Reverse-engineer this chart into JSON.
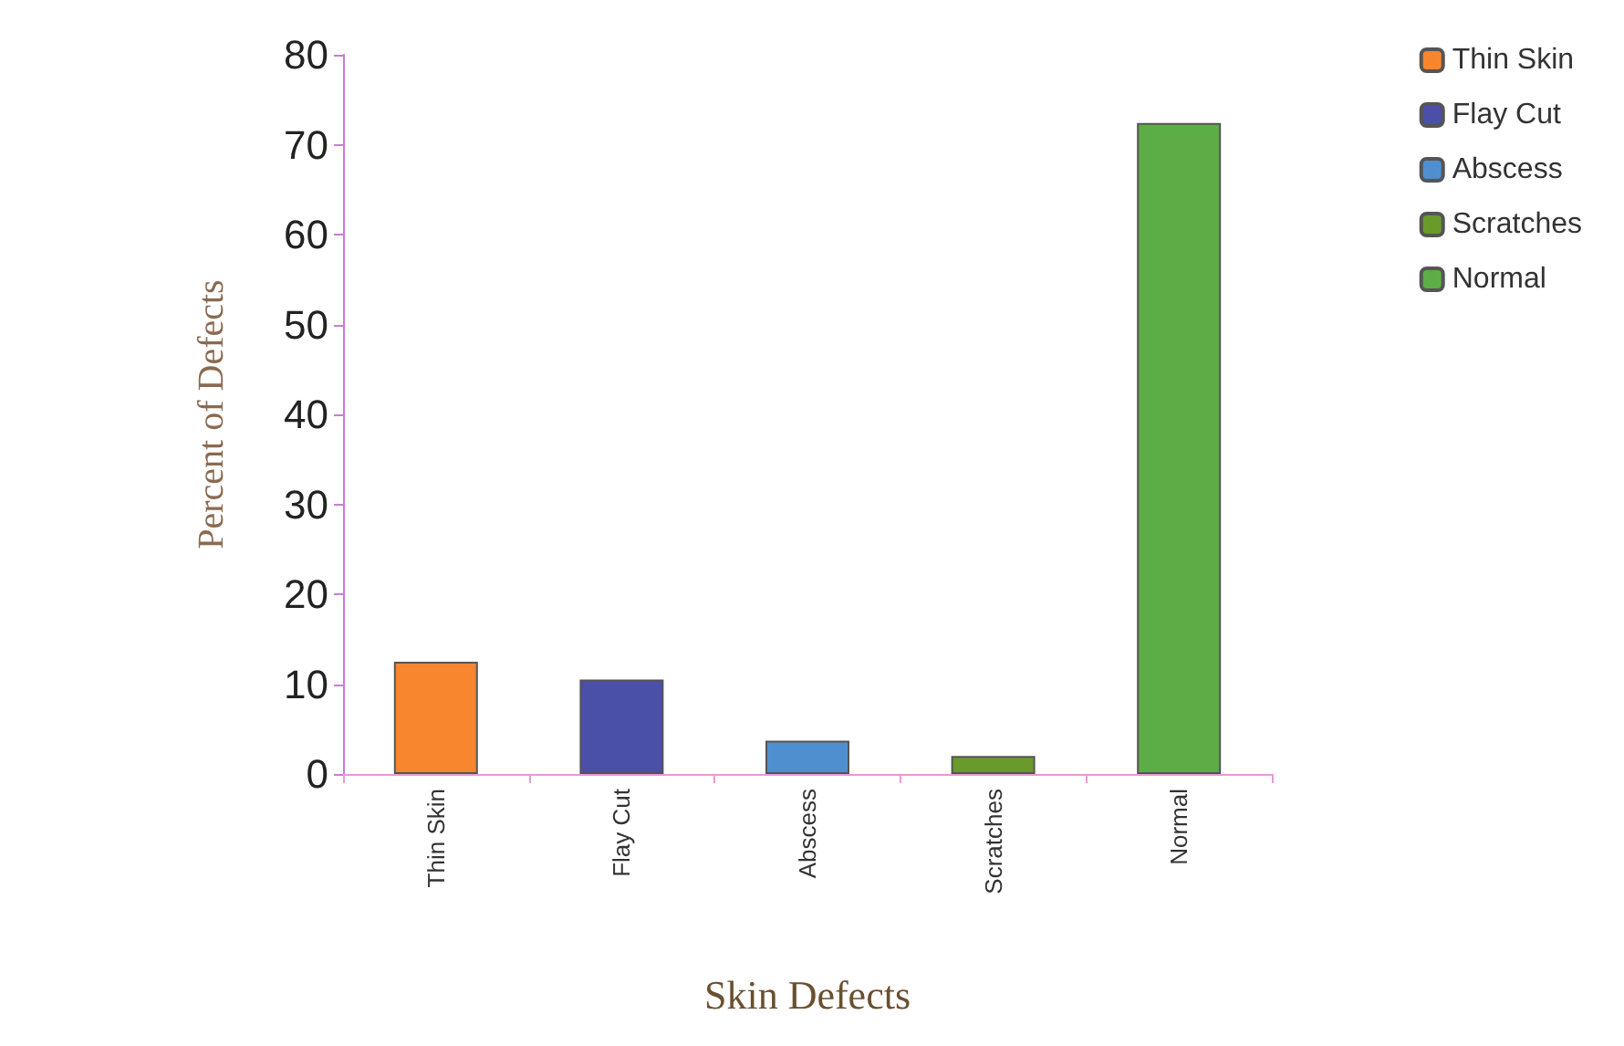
{
  "chart_data": {
    "type": "bar",
    "xlabel": "Skin Defects",
    "ylabel": "Percent of Defects",
    "categories": [
      "Thin Skin",
      "Flay Cut",
      "Abscess",
      "Scratches",
      "Normal"
    ],
    "stacked": true,
    "series": [
      {
        "name": "Thin Skin",
        "color": "#f7862f",
        "values": [
          12.5,
          null,
          null,
          null,
          null
        ]
      },
      {
        "name": "Flay Cut",
        "color": "#4a4fa8",
        "values": [
          null,
          10.5,
          null,
          null,
          null
        ]
      },
      {
        "name": "Abscess",
        "color": "#4f8fd0",
        "values": [
          null,
          null,
          3.7,
          null,
          null
        ]
      },
      {
        "name": "Scratches",
        "color": "#6a9a2a",
        "values": [
          null,
          null,
          null,
          2,
          null
        ]
      },
      {
        "name": "Normal",
        "color": "#5cad45",
        "values": [
          null,
          null,
          null,
          null,
          72.4
        ]
      }
    ],
    "ylim": [
      0,
      80
    ],
    "yticks": [
      0,
      10,
      20,
      30,
      40,
      50,
      60,
      70,
      80
    ],
    "grid": false,
    "legend": "top right"
  }
}
